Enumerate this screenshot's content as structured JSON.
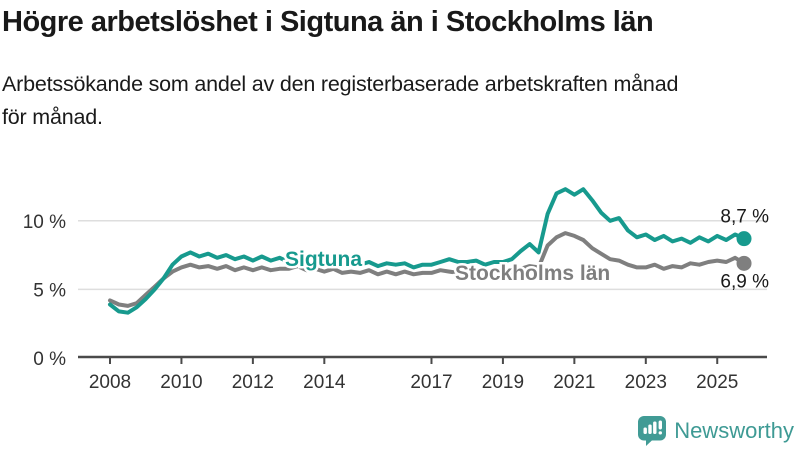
{
  "chart_data": {
    "type": "line",
    "title": "Högre arbetslöshet i Sigtuna än i Stockholms län",
    "subtitle": "Arbetssökande som andel av den registerbaserade arbetskraften månad\nför månad.",
    "unit": "%",
    "grid": "horizontal",
    "legend_position": "inline-labels",
    "ylim": [
      0,
      13.5
    ],
    "x_start": 2008,
    "x_step": 0.25,
    "x_ticks": [
      2008,
      2010,
      2012,
      2014,
      2017,
      2019,
      2021,
      2023,
      2025
    ],
    "y_ticks": [
      {
        "value": 10,
        "label": "10 %"
      },
      {
        "value": 5,
        "label": "5 %"
      },
      {
        "value": 0,
        "label": "0 %"
      }
    ],
    "series": [
      {
        "name": "Sigtuna",
        "color": "#179a8e",
        "end_label": "8,7 %",
        "end_value": 8.7,
        "end_label_side": "above",
        "label_pos": {
          "t": 2012.9,
          "v": 6.71
        },
        "values": [
          3.9,
          3.4,
          3.3,
          3.7,
          4.3,
          5.0,
          5.8,
          6.8,
          7.4,
          7.7,
          7.4,
          7.6,
          7.3,
          7.5,
          7.2,
          7.4,
          7.1,
          7.4,
          7.1,
          7.3,
          7.0,
          7.2,
          6.9,
          7.1,
          7.0,
          7.1,
          6.8,
          6.7,
          6.8,
          7.0,
          6.7,
          6.9,
          6.8,
          6.9,
          6.6,
          6.8,
          6.8,
          7.0,
          7.2,
          7.0,
          7.0,
          7.1,
          6.8,
          7.0,
          7.0,
          7.2,
          7.8,
          8.3,
          7.7,
          10.5,
          12.0,
          12.3,
          11.9,
          12.3,
          11.5,
          10.6,
          10.0,
          10.2,
          9.3,
          8.8,
          9.0,
          8.6,
          8.9,
          8.5,
          8.7,
          8.4,
          8.8,
          8.5,
          8.9,
          8.6,
          9.0,
          8.7
        ]
      },
      {
        "name": "Stockholms län",
        "color": "#7f7f7f",
        "end_label": "6,9 %",
        "end_value": 6.9,
        "end_label_side": "below",
        "label_pos": {
          "t": 2017.66,
          "v": 5.69
        },
        "values": [
          4.2,
          3.9,
          3.8,
          4.0,
          4.6,
          5.2,
          5.8,
          6.3,
          6.6,
          6.8,
          6.6,
          6.7,
          6.5,
          6.7,
          6.4,
          6.6,
          6.4,
          6.6,
          6.4,
          6.5,
          6.5,
          6.7,
          6.4,
          6.5,
          6.3,
          6.5,
          6.2,
          6.3,
          6.2,
          6.4,
          6.1,
          6.3,
          6.1,
          6.3,
          6.1,
          6.2,
          6.2,
          6.4,
          6.3,
          6.2,
          6.1,
          6.3,
          6.1,
          6.2,
          6.2,
          6.3,
          6.5,
          6.7,
          6.6,
          8.2,
          8.8,
          9.1,
          8.9,
          8.6,
          8.0,
          7.6,
          7.2,
          7.1,
          6.8,
          6.6,
          6.6,
          6.8,
          6.5,
          6.7,
          6.6,
          6.9,
          6.8,
          7.0,
          7.1,
          7.0,
          7.3,
          6.9
        ]
      }
    ]
  },
  "colors": {
    "axis": "#4a4a4a",
    "grid": "#dedede",
    "axis_text": "#333333",
    "value_text": "#191919",
    "brand_teal": "#419b95"
  },
  "footer": {
    "brand": "Newsworthy"
  }
}
